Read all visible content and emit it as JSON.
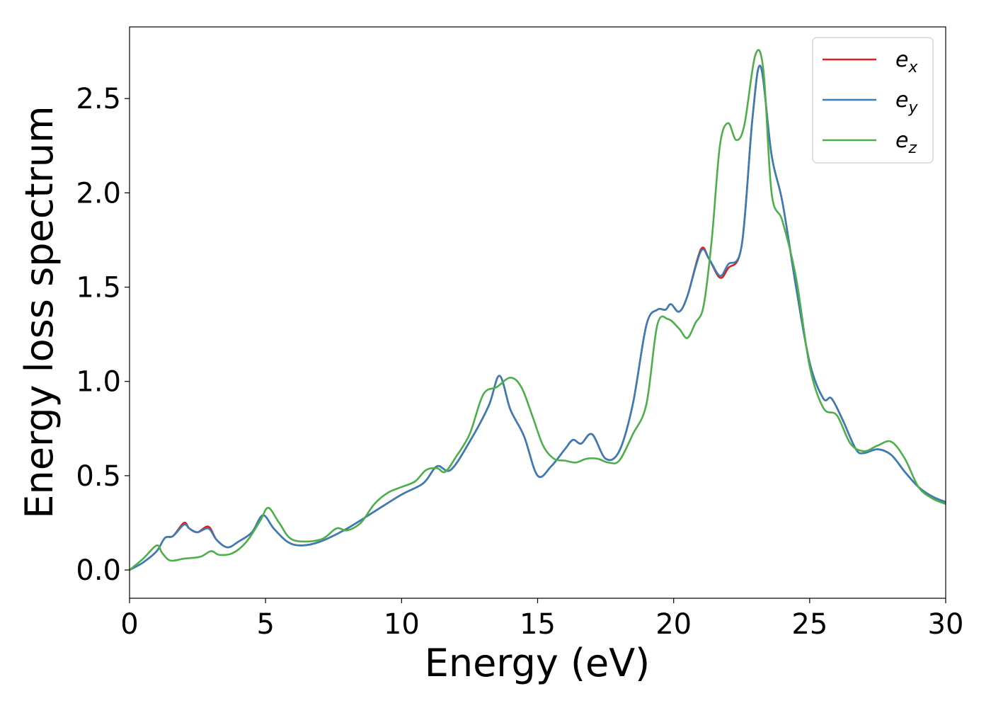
{
  "chart_data": {
    "type": "line",
    "xlabel": "Energy (eV)",
    "ylabel": "Energy loss spectrum",
    "xlim": [
      0,
      30
    ],
    "ylim": [
      -0.15,
      2.88
    ],
    "xticks": [
      "0",
      "5",
      "10",
      "15",
      "20",
      "25",
      "30"
    ],
    "xtick_values": [
      0,
      5,
      10,
      15,
      20,
      25,
      30
    ],
    "yticks": [
      "0.0",
      "0.5",
      "1.0",
      "1.5",
      "2.0",
      "2.5"
    ],
    "ytick_values": [
      0,
      0.5,
      1.0,
      1.5,
      2.0,
      2.5
    ],
    "grid": false,
    "legend_position": "top-right",
    "series": [
      {
        "name": "e",
        "subscript": "x",
        "color": "#e41a1c",
        "x": [
          0,
          0.5,
          1.0,
          1.3,
          1.6,
          2.0,
          2.2,
          2.5,
          2.9,
          3.2,
          3.6,
          4.0,
          4.5,
          4.9,
          5.3,
          5.8,
          6.3,
          7.0,
          8.0,
          9.0,
          10.0,
          10.8,
          11.3,
          11.8,
          12.5,
          13.2,
          13.6,
          14.0,
          14.5,
          15.0,
          15.5,
          16.0,
          16.3,
          16.6,
          17.0,
          17.5,
          18.0,
          18.5,
          19.0,
          19.4,
          19.7,
          19.9,
          20.2,
          20.5,
          21.0,
          21.3,
          21.7,
          22.0,
          22.5,
          22.9,
          23.2,
          23.6,
          24.0,
          24.5,
          25.0,
          25.5,
          25.8,
          26.2,
          26.7,
          27.0,
          27.5,
          28.0,
          28.5,
          29.0,
          29.5,
          30.0
        ],
        "values": [
          0,
          0.04,
          0.1,
          0.17,
          0.18,
          0.25,
          0.22,
          0.2,
          0.23,
          0.16,
          0.12,
          0.15,
          0.2,
          0.29,
          0.22,
          0.15,
          0.13,
          0.15,
          0.22,
          0.31,
          0.4,
          0.46,
          0.55,
          0.53,
          0.68,
          0.87,
          1.03,
          0.85,
          0.71,
          0.5,
          0.55,
          0.64,
          0.69,
          0.67,
          0.72,
          0.59,
          0.63,
          0.88,
          1.3,
          1.38,
          1.38,
          1.41,
          1.37,
          1.45,
          1.7,
          1.65,
          1.55,
          1.6,
          1.72,
          2.4,
          2.67,
          2.2,
          1.95,
          1.5,
          1.1,
          0.91,
          0.91,
          0.8,
          0.64,
          0.62,
          0.64,
          0.61,
          0.52,
          0.44,
          0.39,
          0.36
        ]
      },
      {
        "name": "e",
        "subscript": "y",
        "color": "#377eb8",
        "x": [
          0,
          0.5,
          1.0,
          1.3,
          1.6,
          2.0,
          2.2,
          2.5,
          2.9,
          3.2,
          3.6,
          4.0,
          4.5,
          4.9,
          5.3,
          5.8,
          6.3,
          7.0,
          8.0,
          9.0,
          10.0,
          10.8,
          11.3,
          11.8,
          12.5,
          13.2,
          13.6,
          14.0,
          14.5,
          15.0,
          15.5,
          16.0,
          16.3,
          16.6,
          17.0,
          17.5,
          18.0,
          18.5,
          19.0,
          19.4,
          19.7,
          19.9,
          20.2,
          20.5,
          21.0,
          21.3,
          21.7,
          22.0,
          22.5,
          22.9,
          23.2,
          23.6,
          24.0,
          24.5,
          25.0,
          25.5,
          25.8,
          26.2,
          26.7,
          27.0,
          27.5,
          28.0,
          28.5,
          29.0,
          29.5,
          30.0
        ],
        "values": [
          0,
          0.04,
          0.1,
          0.17,
          0.18,
          0.24,
          0.22,
          0.2,
          0.22,
          0.16,
          0.12,
          0.15,
          0.2,
          0.29,
          0.22,
          0.15,
          0.13,
          0.15,
          0.22,
          0.31,
          0.4,
          0.46,
          0.55,
          0.53,
          0.68,
          0.87,
          1.03,
          0.85,
          0.71,
          0.5,
          0.55,
          0.64,
          0.69,
          0.67,
          0.72,
          0.59,
          0.63,
          0.88,
          1.3,
          1.38,
          1.38,
          1.41,
          1.37,
          1.45,
          1.69,
          1.65,
          1.56,
          1.62,
          1.72,
          2.4,
          2.67,
          2.2,
          1.95,
          1.5,
          1.1,
          0.91,
          0.91,
          0.8,
          0.64,
          0.62,
          0.64,
          0.61,
          0.52,
          0.44,
          0.39,
          0.36
        ]
      },
      {
        "name": "e",
        "subscript": "z",
        "color": "#4daf4a",
        "x": [
          0,
          0.5,
          1.0,
          1.2,
          1.5,
          2.0,
          2.6,
          3.0,
          3.3,
          3.8,
          4.3,
          4.8,
          5.1,
          5.5,
          6.0,
          7.0,
          7.6,
          8.0,
          8.5,
          9.0,
          9.5,
          10.0,
          10.5,
          10.9,
          11.3,
          11.6,
          12.0,
          12.5,
          13.0,
          13.5,
          14.0,
          14.4,
          14.8,
          15.2,
          15.6,
          16.0,
          16.4,
          16.8,
          17.2,
          17.6,
          18.0,
          18.5,
          19.0,
          19.4,
          19.8,
          20.2,
          20.5,
          20.8,
          21.1,
          21.4,
          21.7,
          22.0,
          22.3,
          22.6,
          23.0,
          23.3,
          23.6,
          24.0,
          24.5,
          25.0,
          25.5,
          26.0,
          26.5,
          27.0,
          27.5,
          28.0,
          28.5,
          29.0,
          29.5,
          30.0
        ],
        "values": [
          0,
          0.06,
          0.13,
          0.09,
          0.05,
          0.06,
          0.07,
          0.1,
          0.08,
          0.09,
          0.15,
          0.26,
          0.33,
          0.25,
          0.16,
          0.16,
          0.22,
          0.21,
          0.25,
          0.35,
          0.41,
          0.44,
          0.47,
          0.53,
          0.54,
          0.52,
          0.6,
          0.72,
          0.93,
          0.97,
          1.02,
          0.97,
          0.82,
          0.66,
          0.59,
          0.58,
          0.57,
          0.59,
          0.59,
          0.57,
          0.58,
          0.72,
          0.88,
          1.3,
          1.33,
          1.28,
          1.23,
          1.31,
          1.4,
          1.75,
          2.25,
          2.37,
          2.28,
          2.36,
          2.73,
          2.65,
          2.0,
          1.85,
          1.55,
          1.08,
          0.86,
          0.82,
          0.67,
          0.63,
          0.66,
          0.68,
          0.59,
          0.44,
          0.38,
          0.35
        ]
      }
    ]
  }
}
